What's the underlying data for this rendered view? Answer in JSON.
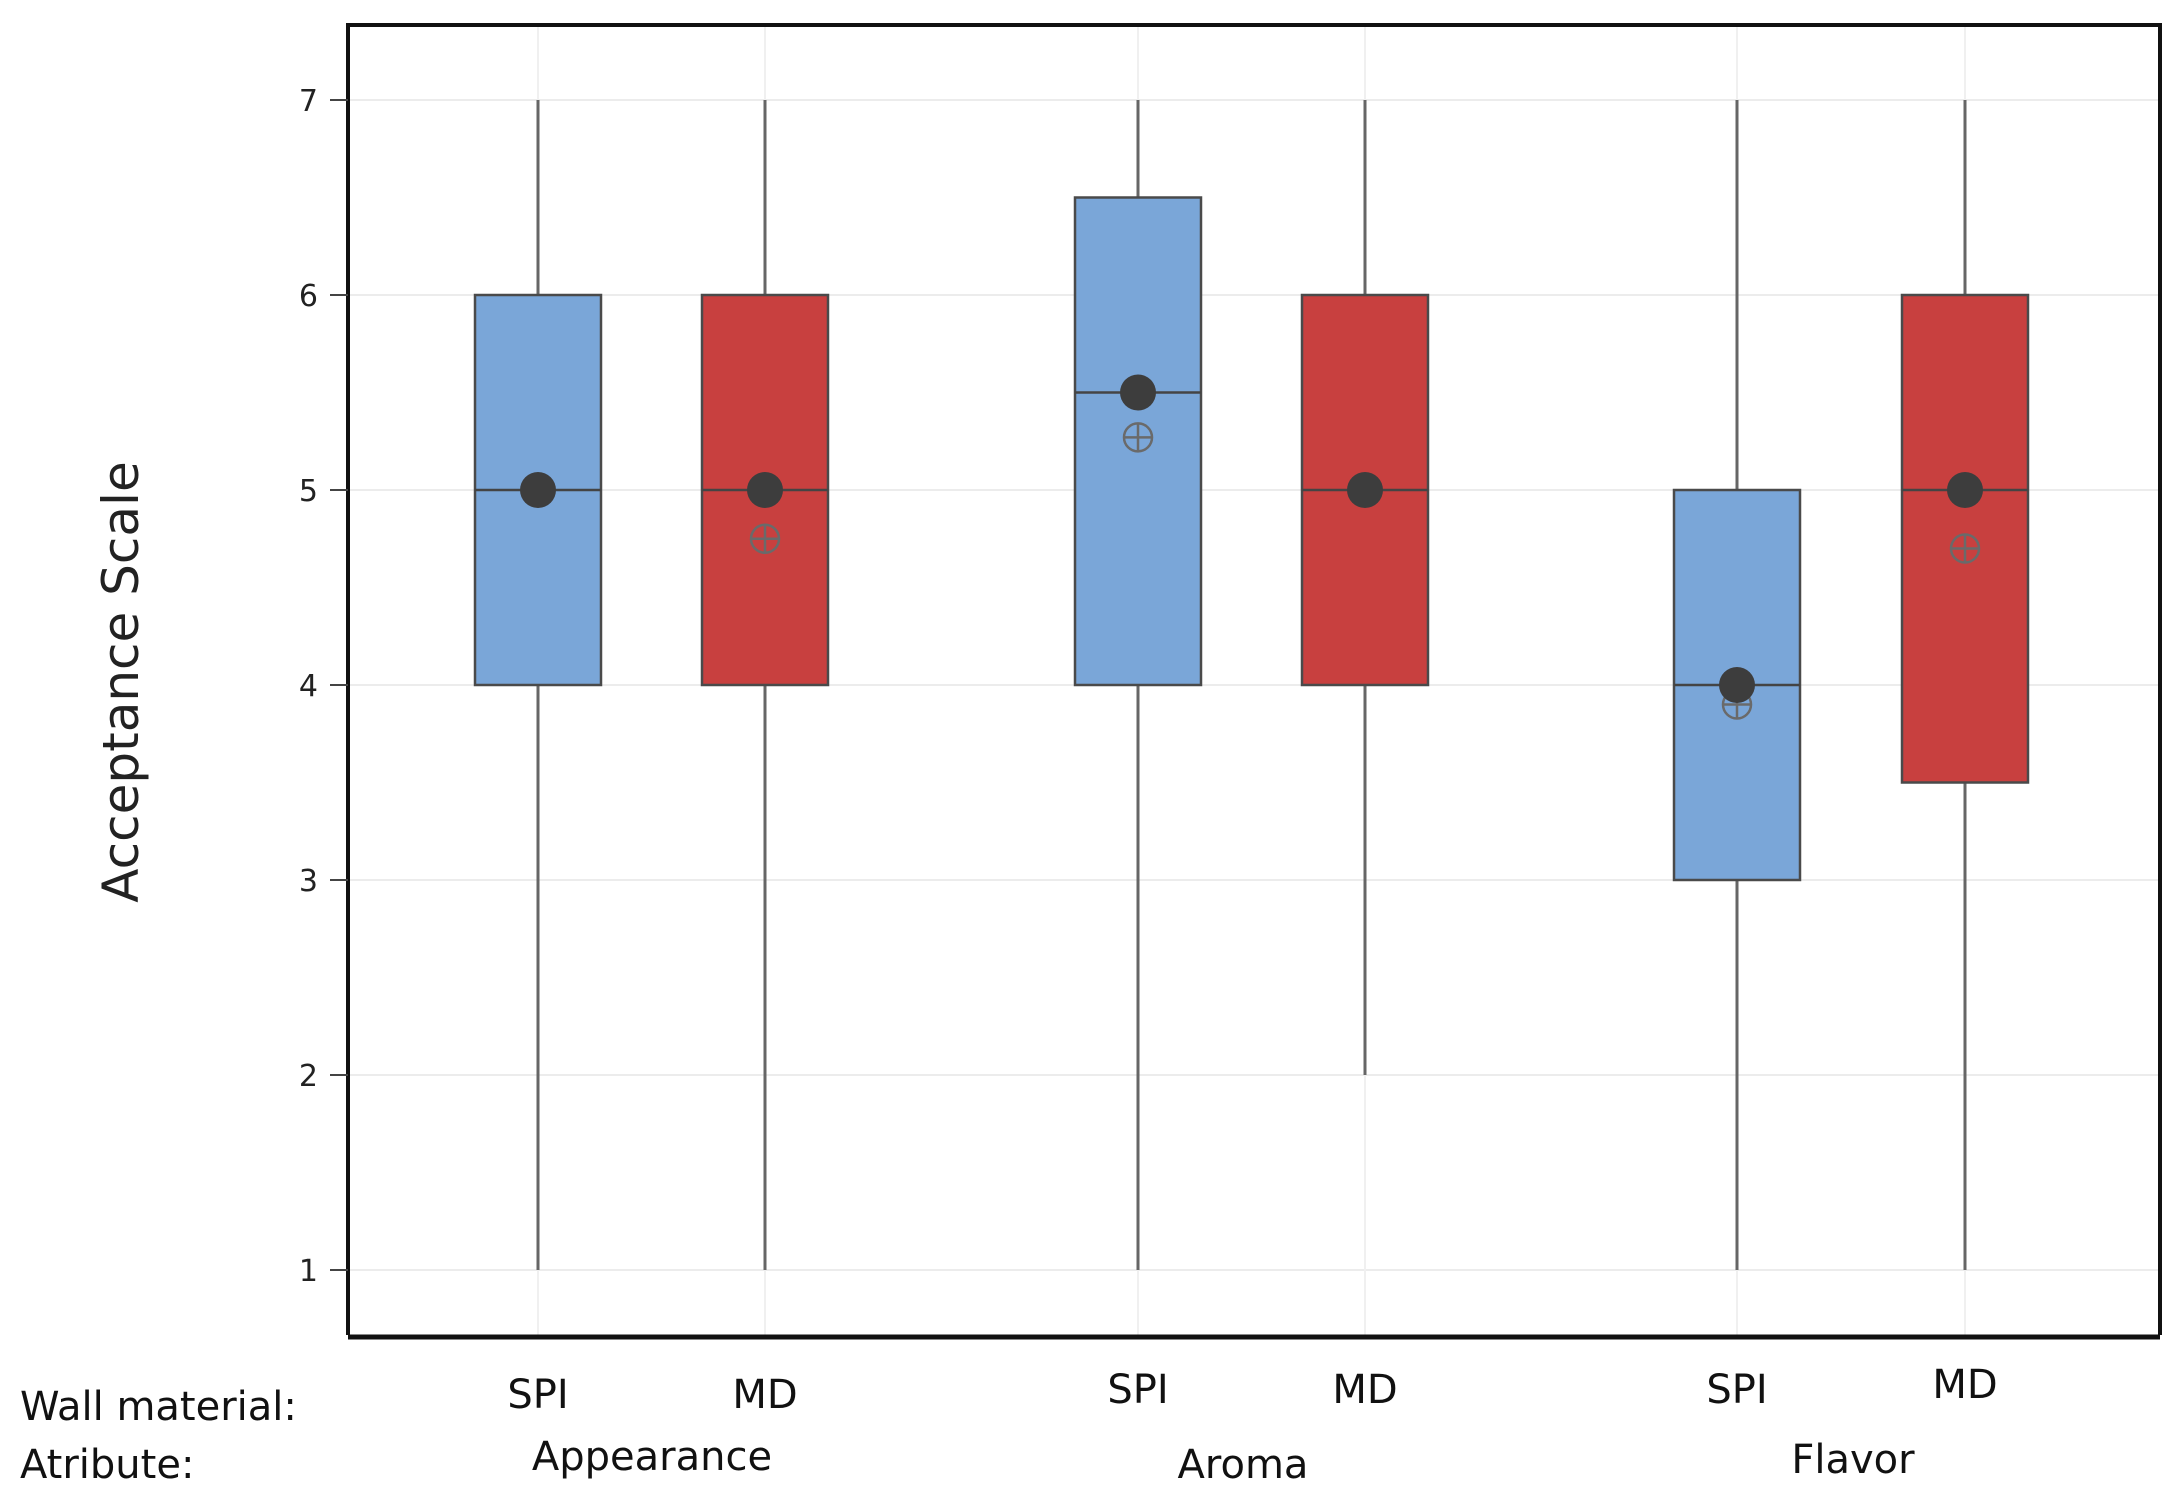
{
  "chart_data": {
    "type": "boxplot",
    "title": "",
    "ylabel": "Acceptance Scale",
    "ylim": [
      0.7,
      7.4
    ],
    "yticks": [
      1,
      2,
      3,
      4,
      5,
      6,
      7
    ],
    "grid": true,
    "row_labels": {
      "wall_material": "Wall material:",
      "attribute": "Atribute:"
    },
    "attributes": [
      "Appearance",
      "Aroma",
      "Flavor"
    ],
    "colors": {
      "SPI": "#7aa6d8",
      "MD": "#c8403f",
      "whisker": "#666666",
      "median_dot": "#3d3d3d",
      "mean_marker": "#6a6a6a"
    },
    "series": [
      {
        "attribute": "Appearance",
        "wall_material": "SPI",
        "min": 1,
        "q1": 4,
        "median": 5,
        "q3": 6,
        "max": 7,
        "mean": 5.0
      },
      {
        "attribute": "Appearance",
        "wall_material": "MD",
        "min": 1,
        "q1": 4,
        "median": 5,
        "q3": 6,
        "max": 7,
        "mean": 4.75
      },
      {
        "attribute": "Aroma",
        "wall_material": "SPI",
        "min": 1,
        "q1": 4,
        "median": 5.5,
        "q3": 6.5,
        "max": 7,
        "mean": 5.27
      },
      {
        "attribute": "Aroma",
        "wall_material": "MD",
        "min": 2,
        "q1": 4,
        "median": 5,
        "q3": 6,
        "max": 7,
        "mean": 5.0
      },
      {
        "attribute": "Flavor",
        "wall_material": "SPI",
        "min": 1,
        "q1": 3,
        "median": 4,
        "q3": 5,
        "max": 7,
        "mean": 3.9
      },
      {
        "attribute": "Flavor",
        "wall_material": "MD",
        "min": 1,
        "q1": 3.5,
        "median": 5,
        "q3": 6,
        "max": 7,
        "mean": 4.7
      }
    ]
  }
}
